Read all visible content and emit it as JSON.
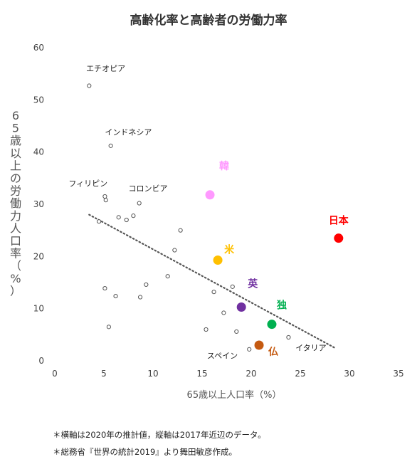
{
  "chart_data": {
    "type": "scatter",
    "title": "高齢化率と高齢者の労働力率",
    "xlabel": "65歳以上人口率（%）",
    "ylabel": "65歳以上の労働力人口率（%）",
    "xlim": [
      0,
      35
    ],
    "ylim": [
      0,
      60
    ],
    "xticks": [
      0,
      5,
      10,
      15,
      20,
      25,
      30,
      35
    ],
    "yticks": [
      0,
      10,
      20,
      30,
      40,
      50,
      60
    ],
    "grid": false,
    "trendline": {
      "style": "dotted",
      "from": [
        3.5,
        28.0
      ],
      "to": [
        28.5,
        2.5
      ]
    },
    "small_points": [
      {
        "x": 3.5,
        "y": 52.7
      },
      {
        "x": 5.7,
        "y": 41.2
      },
      {
        "x": 5.1,
        "y": 31.5
      },
      {
        "x": 5.2,
        "y": 30.8
      },
      {
        "x": 4.5,
        "y": 26.7
      },
      {
        "x": 6.5,
        "y": 27.5
      },
      {
        "x": 7.3,
        "y": 27.0
      },
      {
        "x": 8.0,
        "y": 27.8
      },
      {
        "x": 8.6,
        "y": 30.2
      },
      {
        "x": 12.8,
        "y": 25.0
      },
      {
        "x": 12.2,
        "y": 21.2
      },
      {
        "x": 11.5,
        "y": 16.2
      },
      {
        "x": 9.3,
        "y": 14.6
      },
      {
        "x": 5.1,
        "y": 13.9
      },
      {
        "x": 6.2,
        "y": 12.4
      },
      {
        "x": 8.7,
        "y": 12.2
      },
      {
        "x": 5.5,
        "y": 6.5
      },
      {
        "x": 16.2,
        "y": 13.2
      },
      {
        "x": 18.1,
        "y": 14.2
      },
      {
        "x": 17.2,
        "y": 9.2
      },
      {
        "x": 15.4,
        "y": 6.0
      },
      {
        "x": 18.5,
        "y": 5.6
      },
      {
        "x": 19.8,
        "y": 2.2
      },
      {
        "x": 23.8,
        "y": 4.5
      }
    ],
    "highlighted": [
      {
        "label": "日本",
        "x": 28.9,
        "y": 23.5,
        "color": "#ff0000"
      },
      {
        "label": "韓",
        "x": 15.8,
        "y": 31.8,
        "color": "#ff99ff"
      },
      {
        "label": "米",
        "x": 16.6,
        "y": 19.3,
        "color": "#ffc000"
      },
      {
        "label": "英",
        "x": 19.0,
        "y": 10.3,
        "color": "#7030a0"
      },
      {
        "label": "独",
        "x": 22.1,
        "y": 7.0,
        "color": "#00b050"
      },
      {
        "label": "仏",
        "x": 20.8,
        "y": 3.0,
        "color": "#c55a11"
      }
    ],
    "annotations": [
      {
        "label": "エチオピア",
        "x": 3.2,
        "y": 55.5
      },
      {
        "label": "インドネシア",
        "x": 5.1,
        "y": 43.3
      },
      {
        "label": "フィリピン",
        "x": 1.4,
        "y": 33.5
      },
      {
        "label": "コロンビア",
        "x": 7.5,
        "y": 32.5
      },
      {
        "label": "スペイン",
        "x": 15.5,
        "y": 0.5
      },
      {
        "label": "イタリア",
        "x": 24.5,
        "y": 2.0
      }
    ]
  },
  "notes": [
    "＊横軸は2020年の推計値，縦軸は2017年近辺のデータ。",
    "＊総務省『世界の統計2019』より舞田敏彦作成。"
  ]
}
